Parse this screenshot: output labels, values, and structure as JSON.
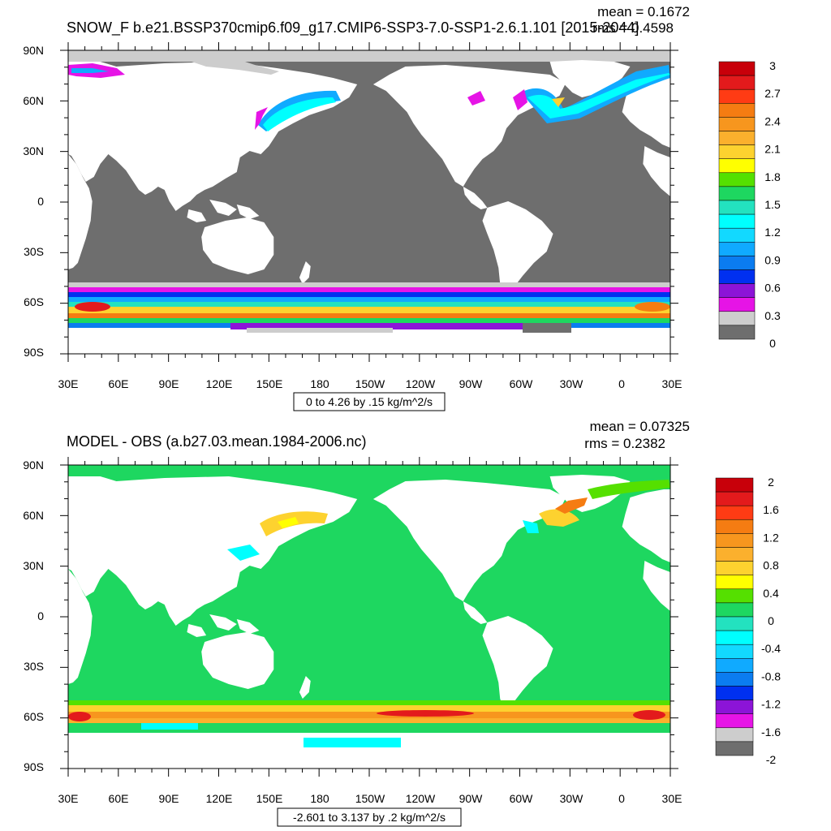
{
  "panels": [
    {
      "title": "SNOW_F b.e21.BSSP370cmip6.f09_g17.CMIP6-SSP3-7.0-SSP1-2.6.1.101 [2015-2044]",
      "mean_label": "mean = 0.1672",
      "rms_label": "rms = 0.4598",
      "range_label": "0 to 4.26 by .15 kg/m^2/s",
      "lat_labels": [
        "90N",
        "60N",
        "30N",
        "0",
        "30S",
        "60S",
        "90S"
      ],
      "lon_labels": [
        "30E",
        "60E",
        "90E",
        "120E",
        "150E",
        "180",
        "150W",
        "120W",
        "90W",
        "60W",
        "30W",
        "0",
        "30E"
      ],
      "colorbar": {
        "labels": [
          "3",
          "2.7",
          "2.4",
          "2.1",
          "1.8",
          "1.5",
          "1.2",
          "0.9",
          "0.6",
          "0.3",
          "0"
        ],
        "colors": [
          "#c8000a",
          "#e31a1c",
          "#ff3b14",
          "#f57c12",
          "#f7961e",
          "#fbb02d",
          "#fdd22f",
          "#ffff00",
          "#55e000",
          "#1ed760",
          "#23e2bf",
          "#00fffe",
          "#12d9ff",
          "#10aaff",
          "#0b7cf0",
          "#0030f0",
          "#8c14d7",
          "#e614e6",
          "#cdcdcd",
          "#6e6e6e"
        ]
      }
    },
    {
      "title": "MODEL - OBS (a.b27.03.mean.1984-2006.nc)",
      "mean_label": "mean = 0.07325",
      "rms_label": "rms = 0.2382",
      "range_label": "-2.601 to 3.137 by .2 kg/m^2/s",
      "lat_labels": [
        "90N",
        "60N",
        "30N",
        "0",
        "30S",
        "60S",
        "90S"
      ],
      "lon_labels": [
        "30E",
        "60E",
        "90E",
        "120E",
        "150E",
        "180",
        "150W",
        "120W",
        "90W",
        "60W",
        "30W",
        "0",
        "30E"
      ],
      "colorbar": {
        "labels": [
          "2",
          "1.6",
          "1.2",
          "0.8",
          "0.4",
          "0",
          "-0.4",
          "-0.8",
          "-1.2",
          "-1.6",
          "-2"
        ],
        "colors": [
          "#c8000a",
          "#e31a1c",
          "#ff3b14",
          "#f57c12",
          "#f7961e",
          "#fbb02d",
          "#fdd22f",
          "#ffff00",
          "#55e000",
          "#1ed760",
          "#23e2bf",
          "#00fffe",
          "#12d9ff",
          "#10aaff",
          "#0b7cf0",
          "#0030f0",
          "#8c14d7",
          "#e614e6",
          "#cdcdcd",
          "#6e6e6e"
        ]
      }
    }
  ],
  "colors": {
    "ocean_dark": "#6e6e6e",
    "land": "#ffffff",
    "anomaly_base": "#1ed760"
  }
}
